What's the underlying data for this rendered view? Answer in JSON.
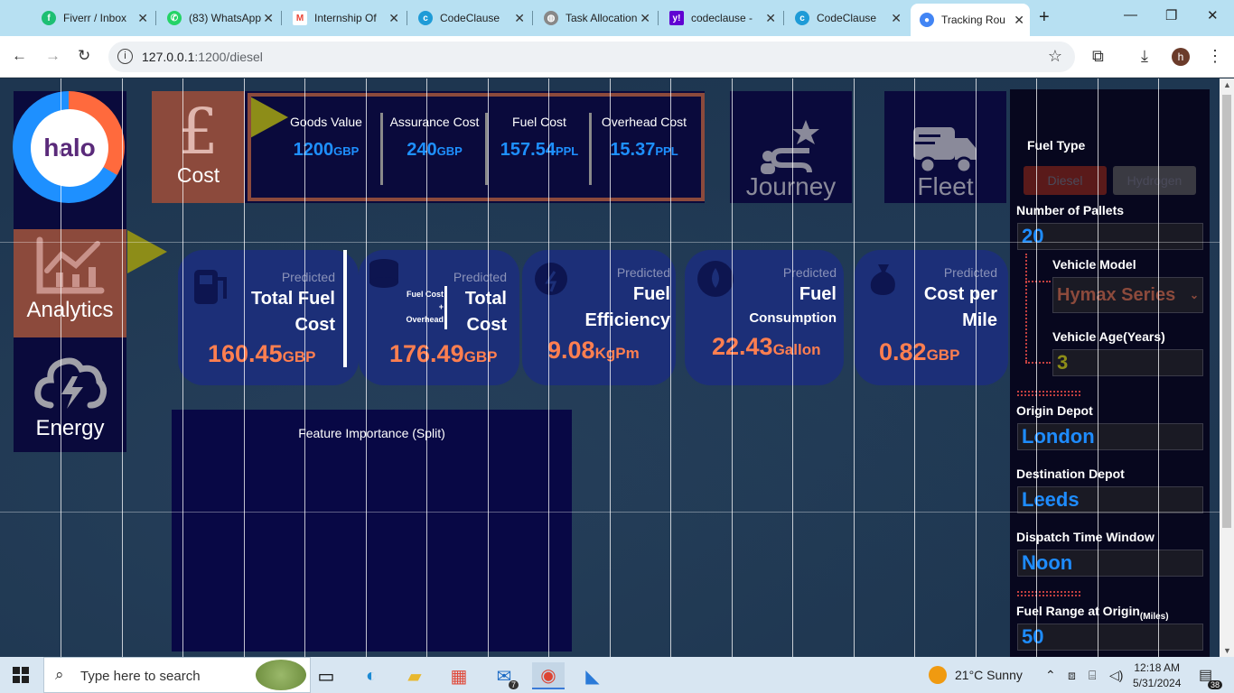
{
  "browser": {
    "tabs": [
      {
        "label": "Fiverr / Inbox",
        "favicon": "fiverr-icon",
        "color": "#1dbf73"
      },
      {
        "label": "(83) WhatsApp",
        "favicon": "whatsapp-icon",
        "color": "#25d366"
      },
      {
        "label": "Internship Of",
        "favicon": "gmail-icon",
        "color": "#ea4335"
      },
      {
        "label": "CodeClause",
        "favicon": "codeclause-icon",
        "color": "#1e9bd7"
      },
      {
        "label": "Task Allocation",
        "favicon": "globe-icon",
        "color": "#888888"
      },
      {
        "label": "codeclause -",
        "favicon": "yahoo-icon",
        "color": "#6001d2"
      },
      {
        "label": "CodeClause",
        "favicon": "codeclause-icon",
        "color": "#1e9bd7"
      },
      {
        "label": "Tracking Rou",
        "favicon": "chrome-icon",
        "color": "#4285f4"
      }
    ],
    "url_host": "127.0.0.1",
    "url_path": ":1200/diesel"
  },
  "brand": {
    "logo_text": "halo"
  },
  "sidebar": {
    "analytics_label": "Analytics",
    "energy_label": "Energy"
  },
  "cost": {
    "label": "Cost",
    "symbol": "£",
    "metrics": [
      {
        "label": "Goods Value",
        "value": "1200",
        "unit": "GBP"
      },
      {
        "label": "Assurance Cost",
        "value": "240",
        "unit": "GBP"
      },
      {
        "label": "Fuel Cost",
        "value": "157.54",
        "unit": "PPL"
      },
      {
        "label": "Overhead Cost",
        "value": "15.37",
        "unit": "PPL"
      }
    ]
  },
  "nav": {
    "journey_label": "Journey",
    "fleet_label": "Fleet"
  },
  "predictions": {
    "predicted_label": "Predicted",
    "total_fuel_cost": {
      "title_1": "Total Fuel",
      "title_2": "Cost",
      "value": "160.45",
      "unit": "GBP"
    },
    "total_cost": {
      "note_1": "Fuel Cost",
      "note_2": "+",
      "note_3": "Overhead",
      "title_1": "Total",
      "title_2": "Cost",
      "value": "176.49",
      "unit": "GBP"
    },
    "fuel_efficiency": {
      "title_1": "Fuel",
      "title_2": "Efficiency",
      "value": "9.08",
      "unit": "KgPm"
    },
    "fuel_consumption": {
      "title_1": "Fuel",
      "title_2": "Consumption",
      "value": "22.43",
      "unit": "Gallon"
    },
    "cost_per_mile": {
      "title_1": "Cost per",
      "title_2": "Mile",
      "value": "0.82",
      "unit": "GBP"
    }
  },
  "feature_importance": {
    "title": "Feature Importance (Split)"
  },
  "form": {
    "fuel_type_label": "Fuel Type",
    "fuel_options": [
      "Diesel",
      "Hydrogen"
    ],
    "pallets_label": "Number of Pallets",
    "pallets_value": "20",
    "vehicle_model_label": "Vehicle Model",
    "vehicle_model_value": "Hymax Series",
    "vehicle_age_label": "Vehicle Age(Years)",
    "vehicle_age_value": "3",
    "origin_label": "Origin Depot",
    "origin_value": "London",
    "destination_label": "Destination Depot",
    "destination_value": "Leeds",
    "dispatch_label": "Dispatch Time Window",
    "dispatch_value": "Noon",
    "fuel_range_label": "Fuel Range at Origin",
    "fuel_range_unit": "(Miles)",
    "fuel_range_value": "50"
  },
  "taskbar": {
    "search_placeholder": "Type here to search",
    "weather": "21°C  Sunny",
    "time": "12:18 AM",
    "date": "5/31/2024",
    "notification_count": "38",
    "mail_badge": "7"
  },
  "colors": {
    "accent_blue": "#1e90ff",
    "value_orange": "#ff7f50",
    "tile_brown": "#8c4a3c",
    "navy": "#0a0a3c"
  }
}
